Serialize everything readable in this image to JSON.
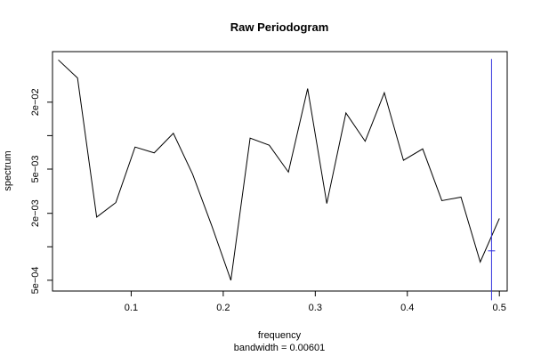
{
  "chart_data": {
    "type": "line",
    "title": "Raw Periodogram",
    "xlabel": "frequency",
    "sublabel": "bandwidth = 0.00601",
    "ylabel": "spectrum",
    "y_scale": "log",
    "xlim": [
      0.0145,
      0.5085
    ],
    "ylim": [
      0.0004,
      0.057
    ],
    "x_ticks": [
      {
        "value": 0.1,
        "label": "0.1"
      },
      {
        "value": 0.2,
        "label": "0.2"
      },
      {
        "value": 0.3,
        "label": "0.3"
      },
      {
        "value": 0.4,
        "label": "0.4"
      },
      {
        "value": 0.5,
        "label": "0.5"
      }
    ],
    "y_ticks": [
      {
        "value": 0.0005,
        "label": "5e−04"
      },
      {
        "value": 0.001,
        "label": ""
      },
      {
        "value": 0.002,
        "label": "2e−03"
      },
      {
        "value": 0.005,
        "label": "5e−03"
      },
      {
        "value": 0.01,
        "label": ""
      },
      {
        "value": 0.02,
        "label": "2e−02"
      }
    ],
    "series": [
      {
        "color": "#000000",
        "x": [
          0.0208,
          0.0417,
          0.0625,
          0.0833,
          0.1042,
          0.125,
          0.1458,
          0.1667,
          0.1875,
          0.2083,
          0.2292,
          0.25,
          0.2708,
          0.2917,
          0.3125,
          0.3333,
          0.3542,
          0.375,
          0.3958,
          0.4167,
          0.4375,
          0.4583,
          0.4792,
          0.5
        ],
        "y": [
          0.048,
          0.033,
          0.00185,
          0.0025,
          0.0079,
          0.007,
          0.0105,
          0.0045,
          0.00155,
          0.0005,
          0.0095,
          0.0082,
          0.0047,
          0.0265,
          0.00245,
          0.016,
          0.0089,
          0.0243,
          0.006,
          0.0076,
          0.0026,
          0.0028,
          0.00073,
          0.0018
        ]
      }
    ],
    "ci_bar": {
      "color": "#3333dd",
      "x": 0.4915,
      "y_low": 0.00033,
      "y_high": 0.049,
      "y_center": 0.00092
    }
  }
}
